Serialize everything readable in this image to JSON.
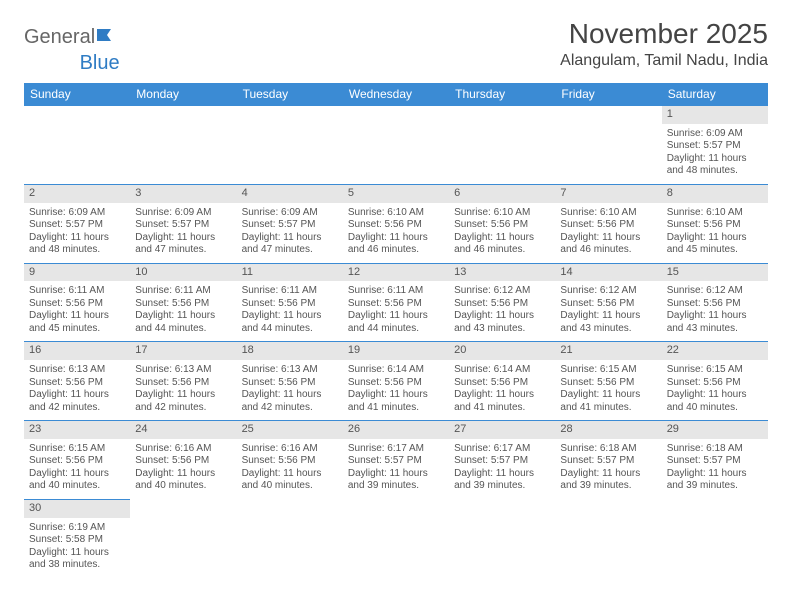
{
  "logo": {
    "general": "General",
    "blue": "Blue"
  },
  "title": "November 2025",
  "location": "Alangulam, Tamil Nadu, India",
  "colors": {
    "header_bg": "#3b8bd4",
    "header_text": "#ffffff",
    "daynum_bg": "#e6e6e6",
    "text": "#555555",
    "rule": "#3b8bd4"
  },
  "weekdays": [
    "Sunday",
    "Monday",
    "Tuesday",
    "Wednesday",
    "Thursday",
    "Friday",
    "Saturday"
  ],
  "weeks": [
    [
      null,
      null,
      null,
      null,
      null,
      null,
      {
        "n": "1",
        "sr": "6:09 AM",
        "ss": "5:57 PM",
        "dl": "11 hours and 48 minutes."
      }
    ],
    [
      {
        "n": "2",
        "sr": "6:09 AM",
        "ss": "5:57 PM",
        "dl": "11 hours and 48 minutes."
      },
      {
        "n": "3",
        "sr": "6:09 AM",
        "ss": "5:57 PM",
        "dl": "11 hours and 47 minutes."
      },
      {
        "n": "4",
        "sr": "6:09 AM",
        "ss": "5:57 PM",
        "dl": "11 hours and 47 minutes."
      },
      {
        "n": "5",
        "sr": "6:10 AM",
        "ss": "5:56 PM",
        "dl": "11 hours and 46 minutes."
      },
      {
        "n": "6",
        "sr": "6:10 AM",
        "ss": "5:56 PM",
        "dl": "11 hours and 46 minutes."
      },
      {
        "n": "7",
        "sr": "6:10 AM",
        "ss": "5:56 PM",
        "dl": "11 hours and 46 minutes."
      },
      {
        "n": "8",
        "sr": "6:10 AM",
        "ss": "5:56 PM",
        "dl": "11 hours and 45 minutes."
      }
    ],
    [
      {
        "n": "9",
        "sr": "6:11 AM",
        "ss": "5:56 PM",
        "dl": "11 hours and 45 minutes."
      },
      {
        "n": "10",
        "sr": "6:11 AM",
        "ss": "5:56 PM",
        "dl": "11 hours and 44 minutes."
      },
      {
        "n": "11",
        "sr": "6:11 AM",
        "ss": "5:56 PM",
        "dl": "11 hours and 44 minutes."
      },
      {
        "n": "12",
        "sr": "6:11 AM",
        "ss": "5:56 PM",
        "dl": "11 hours and 44 minutes."
      },
      {
        "n": "13",
        "sr": "6:12 AM",
        "ss": "5:56 PM",
        "dl": "11 hours and 43 minutes."
      },
      {
        "n": "14",
        "sr": "6:12 AM",
        "ss": "5:56 PM",
        "dl": "11 hours and 43 minutes."
      },
      {
        "n": "15",
        "sr": "6:12 AM",
        "ss": "5:56 PM",
        "dl": "11 hours and 43 minutes."
      }
    ],
    [
      {
        "n": "16",
        "sr": "6:13 AM",
        "ss": "5:56 PM",
        "dl": "11 hours and 42 minutes."
      },
      {
        "n": "17",
        "sr": "6:13 AM",
        "ss": "5:56 PM",
        "dl": "11 hours and 42 minutes."
      },
      {
        "n": "18",
        "sr": "6:13 AM",
        "ss": "5:56 PM",
        "dl": "11 hours and 42 minutes."
      },
      {
        "n": "19",
        "sr": "6:14 AM",
        "ss": "5:56 PM",
        "dl": "11 hours and 41 minutes."
      },
      {
        "n": "20",
        "sr": "6:14 AM",
        "ss": "5:56 PM",
        "dl": "11 hours and 41 minutes."
      },
      {
        "n": "21",
        "sr": "6:15 AM",
        "ss": "5:56 PM",
        "dl": "11 hours and 41 minutes."
      },
      {
        "n": "22",
        "sr": "6:15 AM",
        "ss": "5:56 PM",
        "dl": "11 hours and 40 minutes."
      }
    ],
    [
      {
        "n": "23",
        "sr": "6:15 AM",
        "ss": "5:56 PM",
        "dl": "11 hours and 40 minutes."
      },
      {
        "n": "24",
        "sr": "6:16 AM",
        "ss": "5:56 PM",
        "dl": "11 hours and 40 minutes."
      },
      {
        "n": "25",
        "sr": "6:16 AM",
        "ss": "5:56 PM",
        "dl": "11 hours and 40 minutes."
      },
      {
        "n": "26",
        "sr": "6:17 AM",
        "ss": "5:57 PM",
        "dl": "11 hours and 39 minutes."
      },
      {
        "n": "27",
        "sr": "6:17 AM",
        "ss": "5:57 PM",
        "dl": "11 hours and 39 minutes."
      },
      {
        "n": "28",
        "sr": "6:18 AM",
        "ss": "5:57 PM",
        "dl": "11 hours and 39 minutes."
      },
      {
        "n": "29",
        "sr": "6:18 AM",
        "ss": "5:57 PM",
        "dl": "11 hours and 39 minutes."
      }
    ],
    [
      {
        "n": "30",
        "sr": "6:19 AM",
        "ss": "5:58 PM",
        "dl": "11 hours and 38 minutes."
      },
      null,
      null,
      null,
      null,
      null,
      null
    ]
  ],
  "labels": {
    "sunrise": "Sunrise: ",
    "sunset": "Sunset: ",
    "daylight": "Daylight: "
  }
}
